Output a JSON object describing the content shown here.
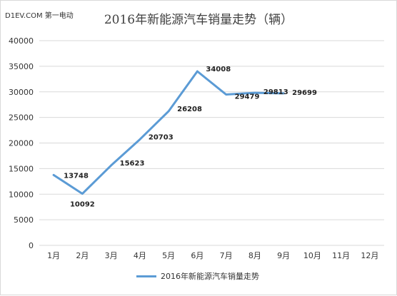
{
  "watermark": "D1EV.COM 第一电动",
  "chart_data": {
    "type": "line",
    "title": "2016年新能源汽车销量走势（辆）",
    "categories": [
      "1月",
      "2月",
      "3月",
      "4月",
      "5月",
      "6月",
      "7月",
      "8月",
      "9月",
      "10月",
      "11月",
      "12月"
    ],
    "series": [
      {
        "name": "2016年新能源汽车销量走势",
        "color": "#5b9bd5",
        "values": [
          13748,
          10092,
          15623,
          20703,
          26208,
          34008,
          29479,
          29813,
          29699,
          null,
          null,
          null
        ]
      }
    ],
    "data_labels": [
      "13748",
      "10092",
      "15623",
      "20703",
      "26208",
      "34008",
      "29479",
      "29813",
      "29699"
    ],
    "ylim": [
      0,
      40000
    ],
    "yticks": [
      "0",
      "5000",
      "10000",
      "15000",
      "20000",
      "25000",
      "30000",
      "35000",
      "40000"
    ],
    "grid": true,
    "legend": "bottom"
  }
}
